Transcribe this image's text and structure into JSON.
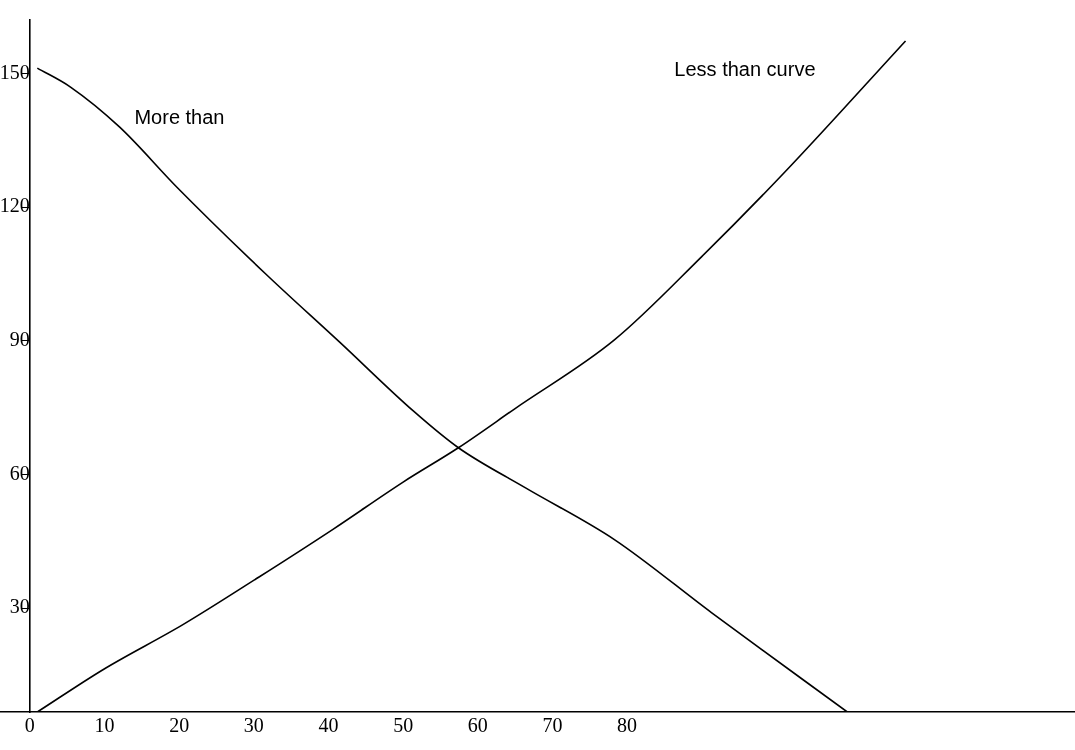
{
  "chart_data": {
    "type": "line",
    "grid": false,
    "marker": "none",
    "line_style": "solid",
    "xlim": [
      -4,
      140
    ],
    "ylim": [
      6.7,
      162
    ],
    "xticks": [
      0,
      10,
      20,
      30,
      40,
      50,
      60,
      70,
      80
    ],
    "yticks": [
      30,
      60,
      90,
      120,
      150
    ],
    "series": [
      {
        "name": "More than",
        "color": "#000000",
        "x": [
          1,
          5.4,
          12,
          19.8,
          31.6,
          41.5,
          51.4,
          57.4,
          66.4,
          78.3,
          91.3,
          109.5
        ],
        "values": [
          151.2,
          147,
          138,
          124.3,
          105,
          89.7,
          74.2,
          66,
          57,
          45.4,
          29,
          6.7
        ]
      },
      {
        "name": "Less than curve",
        "color": "#000000",
        "x": [
          1,
          9.9,
          20.5,
          30.7,
          40.6,
          50,
          57.4,
          65,
          78.3,
          90,
          101.2,
          117.3
        ],
        "values": [
          6.7,
          16.3,
          26.3,
          37,
          47.7,
          58.3,
          66,
          74.8,
          90.2,
          108.9,
          128,
          157.3
        ]
      }
    ]
  }
}
